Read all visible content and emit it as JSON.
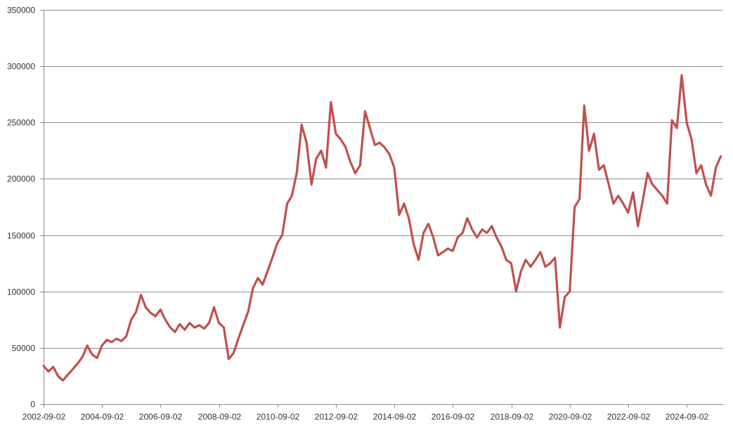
{
  "chart_data": {
    "type": "line",
    "title": "",
    "xlabel": "",
    "ylabel": "",
    "grid": true,
    "legend": "none",
    "ylim": [
      0,
      350000
    ],
    "xlim": [
      "2002-09-02",
      "2025-12-01"
    ],
    "y_ticks": [
      0,
      50000,
      100000,
      150000,
      200000,
      250000,
      300000,
      350000
    ],
    "y_tick_labels": [
      "0",
      "50000",
      "100000",
      "150000",
      "200000",
      "250000",
      "300000",
      "350000"
    ],
    "x_ticks": [
      "2002-09-02",
      "2004-09-02",
      "2006-09-02",
      "2008-09-02",
      "2010-09-02",
      "2012-09-02",
      "2014-09-02",
      "2016-09-02",
      "2018-09-02",
      "2020-09-02",
      "2022-09-02",
      "2024-09-02"
    ],
    "x_tick_labels": [
      "2002-09-02",
      "2004-09-02",
      "2006-09-02",
      "2008-09-02",
      "2010-09-02",
      "2012-09-02",
      "2014-09-02",
      "2016-09-02",
      "2018-09-02",
      "2020-09-02",
      "2022-09-02",
      "2024-09-02"
    ],
    "series": [
      {
        "color": "#c0504d",
        "x": [
          "2002-09-02",
          "2002-11-01",
          "2003-01-01",
          "2003-03-01",
          "2003-05-01",
          "2003-07-01",
          "2003-09-01",
          "2003-11-01",
          "2004-01-01",
          "2004-03-01",
          "2004-05-01",
          "2004-07-01",
          "2004-09-01",
          "2004-11-01",
          "2005-01-01",
          "2005-03-01",
          "2005-05-01",
          "2005-07-01",
          "2005-09-01",
          "2005-11-01",
          "2006-01-01",
          "2006-03-01",
          "2006-05-01",
          "2006-07-01",
          "2006-09-01",
          "2006-11-01",
          "2007-01-01",
          "2007-03-01",
          "2007-05-01",
          "2007-07-01",
          "2007-09-01",
          "2007-11-01",
          "2008-01-01",
          "2008-03-01",
          "2008-05-01",
          "2008-07-01",
          "2008-09-01",
          "2008-11-01",
          "2009-01-01",
          "2009-03-01",
          "2009-05-01",
          "2009-07-01",
          "2009-09-01",
          "2009-11-01",
          "2010-01-01",
          "2010-03-01",
          "2010-05-01",
          "2010-07-01",
          "2010-09-01",
          "2010-11-01",
          "2011-01-01",
          "2011-03-01",
          "2011-05-01",
          "2011-07-01",
          "2011-09-01",
          "2011-11-01",
          "2012-01-01",
          "2012-03-01",
          "2012-05-01",
          "2012-07-01",
          "2012-09-01",
          "2012-11-01",
          "2013-01-01",
          "2013-03-01",
          "2013-05-01",
          "2013-07-01",
          "2013-09-01",
          "2013-11-01",
          "2014-01-01",
          "2014-03-01",
          "2014-05-01",
          "2014-07-01",
          "2014-09-01",
          "2014-11-01",
          "2015-01-01",
          "2015-03-01",
          "2015-05-01",
          "2015-07-01",
          "2015-09-01",
          "2015-11-01",
          "2016-01-01",
          "2016-03-01",
          "2016-05-01",
          "2016-07-01",
          "2016-09-01",
          "2016-11-01",
          "2017-01-01",
          "2017-03-01",
          "2017-05-01",
          "2017-07-01",
          "2017-09-01",
          "2017-11-01",
          "2018-01-01",
          "2018-03-01",
          "2018-05-01",
          "2018-07-01",
          "2018-09-01",
          "2018-11-01",
          "2019-01-01",
          "2019-03-01",
          "2019-05-01",
          "2019-07-01",
          "2019-09-01",
          "2019-11-01",
          "2020-01-01",
          "2020-03-01",
          "2020-05-01",
          "2020-07-01",
          "2020-09-01",
          "2020-11-01",
          "2021-01-01",
          "2021-03-01",
          "2021-05-01",
          "2021-07-01",
          "2021-09-01",
          "2021-11-01",
          "2022-01-01",
          "2022-03-01",
          "2022-05-01",
          "2022-07-01",
          "2022-09-01",
          "2022-11-01",
          "2023-01-01",
          "2023-03-01",
          "2023-05-01",
          "2023-07-01",
          "2023-09-01",
          "2023-11-01",
          "2024-01-01",
          "2024-03-01",
          "2024-05-01",
          "2024-07-01",
          "2024-09-01",
          "2024-11-01",
          "2025-01-01",
          "2025-03-01",
          "2025-05-01",
          "2025-07-01",
          "2025-09-01",
          "2025-11-01"
        ],
        "values": [
          34000,
          29000,
          33000,
          25000,
          21000,
          26000,
          31000,
          36000,
          42000,
          52000,
          44000,
          41000,
          52000,
          57000,
          55000,
          58000,
          56000,
          60000,
          75000,
          82000,
          97000,
          86000,
          81000,
          78000,
          84000,
          75000,
          68000,
          64000,
          71000,
          66000,
          72000,
          68000,
          70000,
          67000,
          72000,
          86000,
          72000,
          68000,
          40000,
          45000,
          58000,
          70000,
          82000,
          103000,
          112000,
          106000,
          118000,
          130000,
          143000,
          150000,
          178000,
          185000,
          205000,
          248000,
          232000,
          195000,
          218000,
          225000,
          210000,
          268000,
          240000,
          235000,
          228000,
          215000,
          205000,
          212000,
          260000,
          245000,
          230000,
          232000,
          228000,
          222000,
          210000,
          168000,
          178000,
          165000,
          142000,
          128000,
          152000,
          160000,
          148000,
          132000,
          135000,
          138000,
          136000,
          148000,
          152000,
          165000,
          155000,
          148000,
          155000,
          152000,
          158000,
          148000,
          140000,
          128000,
          125000,
          100000,
          118000,
          128000,
          122000,
          128000,
          135000,
          122000,
          125000,
          130000,
          68000,
          95000,
          100000,
          175000,
          182000,
          265000,
          225000,
          240000,
          208000,
          212000,
          195000,
          178000,
          185000,
          178000,
          170000,
          188000,
          158000,
          180000,
          205000,
          195000,
          190000,
          185000,
          178000,
          252000,
          245000,
          292000,
          250000,
          235000,
          205000,
          212000,
          195000,
          185000,
          210000,
          220000
        ]
      }
    ]
  }
}
